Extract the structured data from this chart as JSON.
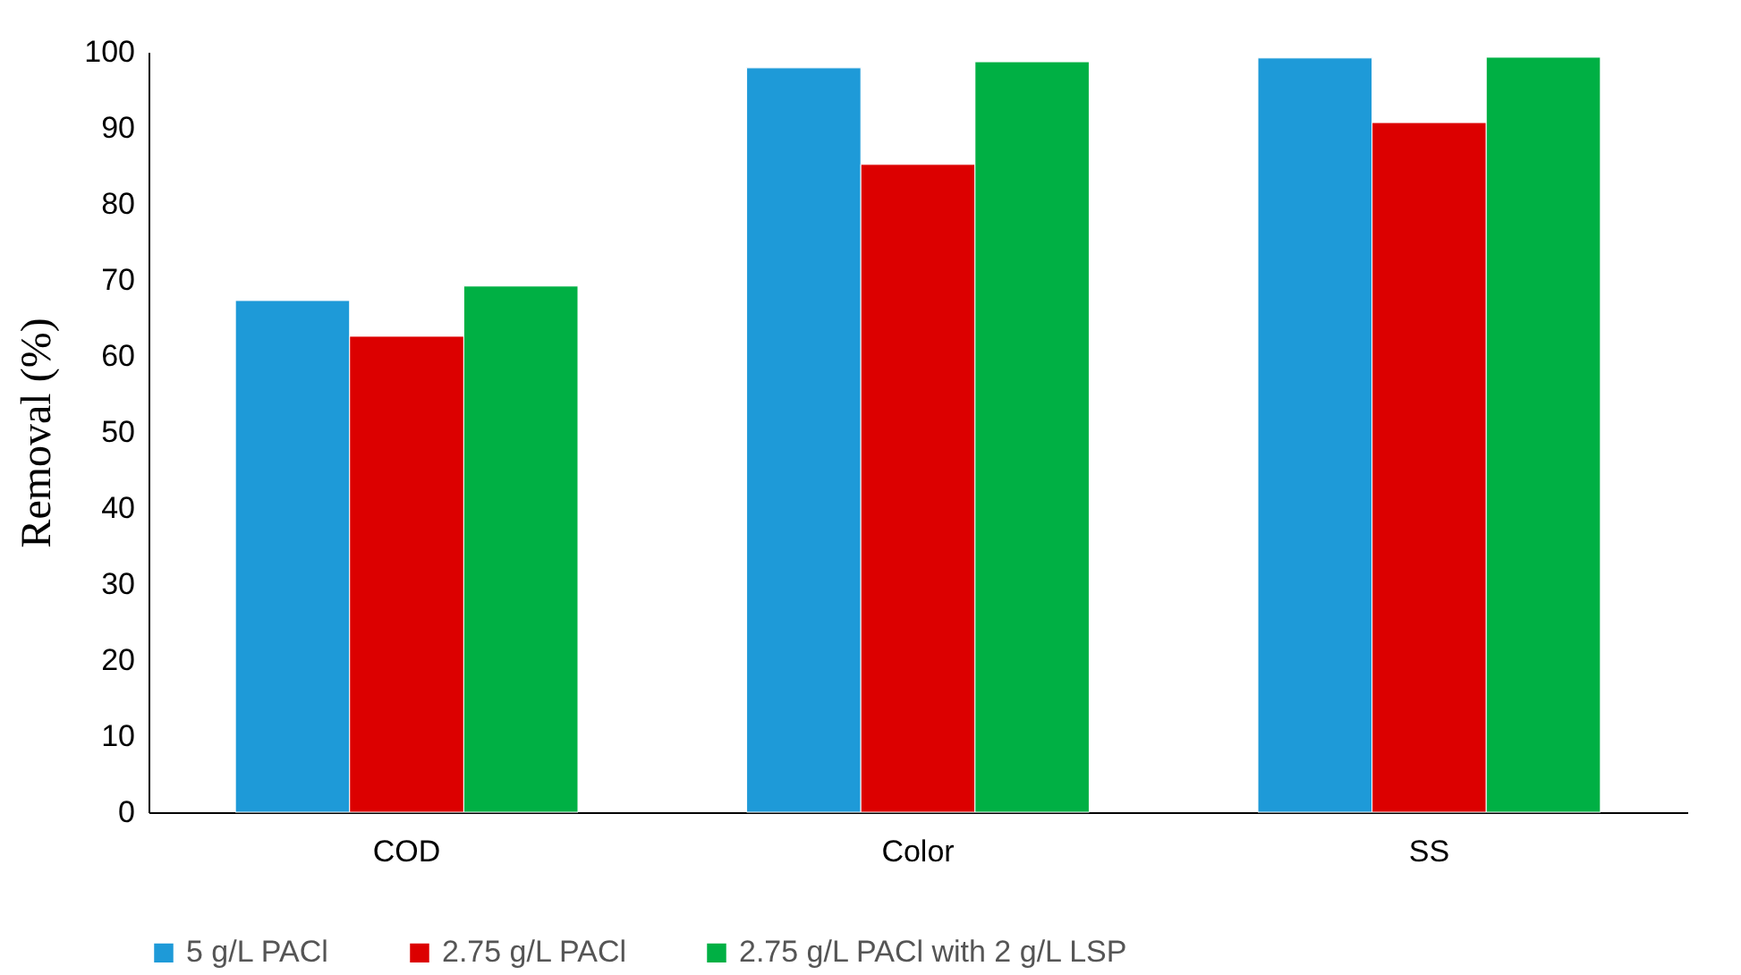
{
  "chart_data": {
    "type": "bar",
    "ylabel": "Removal (%)",
    "categories": [
      "COD",
      "Color",
      "SS"
    ],
    "series": [
      {
        "name": "5 g/L PACl",
        "color": "#1e9ad8",
        "values": [
          67.3,
          97.9,
          99.2
        ]
      },
      {
        "name": "2.75 g/L PACl",
        "color": "#dc0000",
        "values": [
          62.6,
          85.2,
          90.7
        ]
      },
      {
        "name": "2.75 g/L PACl with 2 g/L LSP",
        "color": "#00b044",
        "values": [
          69.2,
          98.7,
          99.3
        ]
      }
    ],
    "ylim": [
      0,
      100
    ],
    "yticks": [
      0,
      10,
      20,
      30,
      40,
      50,
      60,
      70,
      80,
      90,
      100
    ],
    "grid": false,
    "legend": "bottom"
  }
}
